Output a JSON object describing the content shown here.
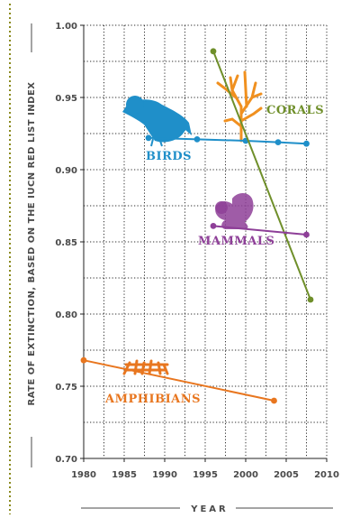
{
  "chart_data": {
    "type": "line",
    "title": "",
    "xlabel": "YEAR",
    "ylabel": "RATE OF EXTINCTION, BASED ON THE IUCN RED LIST INDEX",
    "xlim": [
      1980,
      2010
    ],
    "ylim": [
      0.7,
      1.0
    ],
    "xticks": [
      "1980",
      "1985",
      "1990",
      "1995",
      "2000",
      "2005",
      "2010"
    ],
    "yticks": [
      "0.70",
      "0.75",
      "0.80",
      "0.85",
      "0.90",
      "0.95",
      "1.00"
    ],
    "grid": true,
    "legend": "none",
    "series": [
      {
        "name": "BIRDS",
        "color": "#1f8fc9",
        "icon": "bird-icon",
        "points": [
          [
            1988,
            0.922
          ],
          [
            1994,
            0.921
          ],
          [
            2000,
            0.92
          ],
          [
            2004,
            0.919
          ],
          [
            2007.5,
            0.918
          ]
        ]
      },
      {
        "name": "CORALS",
        "color": "#6f8f2a",
        "icon": "coral-icon",
        "points": [
          [
            1996,
            0.982
          ],
          [
            2008,
            0.81
          ]
        ]
      },
      {
        "name": "MAMMALS",
        "color": "#8e3f98",
        "icon": "squirrel-icon",
        "points": [
          [
            1996,
            0.861
          ],
          [
            2007.5,
            0.855
          ]
        ]
      },
      {
        "name": "AMPHIBIANS",
        "color": "#e8761f",
        "icon": "frog-icon",
        "points": [
          [
            1980,
            0.768
          ],
          [
            2003.5,
            0.74
          ]
        ]
      }
    ]
  }
}
